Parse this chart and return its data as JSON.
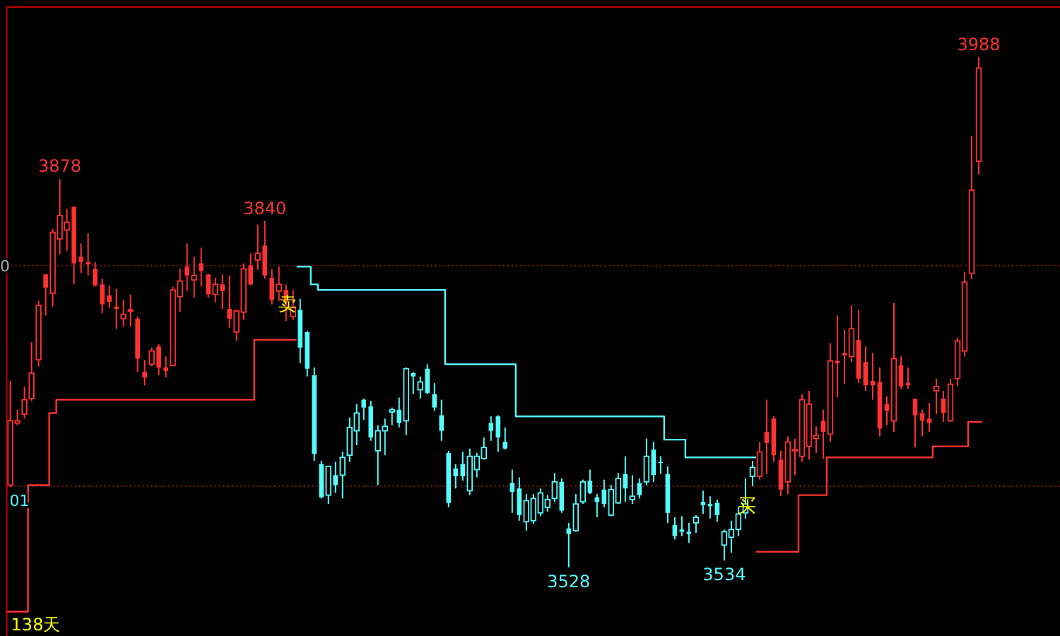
{
  "chart_data": {
    "type": "candlestick",
    "ylim": [
      3466,
      4033
    ],
    "categories": [
      null,
      null,
      null,
      null,
      null,
      null,
      null,
      null,
      null,
      null,
      null,
      null,
      null,
      null,
      null,
      null,
      null,
      null,
      null,
      null,
      null,
      null,
      null,
      null,
      null,
      null,
      null,
      null,
      null,
      null,
      null,
      null,
      null,
      null,
      null,
      null,
      null,
      null,
      null,
      null,
      null,
      null,
      null,
      null,
      null,
      null,
      null,
      null,
      null,
      null,
      null,
      null,
      null,
      null,
      null,
      null,
      null,
      null,
      null,
      null,
      null,
      null,
      null,
      null,
      null,
      null,
      null,
      null,
      null,
      null,
      null,
      null,
      null,
      null,
      null,
      null,
      null,
      null,
      null,
      null,
      null,
      null,
      null,
      null,
      null,
      null,
      null,
      null,
      null,
      null,
      null,
      null,
      null,
      null,
      null,
      null,
      null,
      null,
      null,
      null,
      null,
      null,
      null,
      null,
      null,
      null,
      null,
      null,
      null,
      null,
      null,
      null,
      null,
      null,
      null,
      null,
      null,
      null,
      null,
      null,
      null,
      null,
      null,
      null,
      null,
      null,
      null,
      null,
      null,
      null,
      null,
      null,
      null,
      null,
      null,
      null,
      null,
      null
    ],
    "ohlc": [
      [
        3602,
        3696,
        3600,
        3660
      ],
      [
        3658,
        3670,
        3656,
        3660
      ],
      [
        3666,
        3691,
        3662,
        3679
      ],
      [
        3680,
        3731,
        3678,
        3703
      ],
      [
        3715,
        3768,
        3709,
        3764
      ],
      [
        3792,
        3792,
        3755,
        3780
      ],
      [
        3775,
        3833,
        3763,
        3830
      ],
      [
        3824,
        3878,
        3810,
        3845
      ],
      [
        3832,
        3851,
        3813,
        3839
      ],
      [
        3853,
        3853,
        3783,
        3802
      ],
      [
        3808,
        3820,
        3793,
        3803
      ],
      [
        3803,
        3829,
        3791,
        3801
      ],
      [
        3797,
        3803,
        3781,
        3782
      ],
      [
        3783,
        3788,
        3757,
        3765
      ],
      [
        3773,
        3782,
        3762,
        3767
      ],
      [
        3763,
        3779,
        3743,
        3761
      ],
      [
        3752,
        3769,
        3745,
        3756
      ],
      [
        3759,
        3774,
        3745,
        3760
      ],
      [
        3752,
        3754,
        3704,
        3716
      ],
      [
        3704,
        3715,
        3692,
        3699
      ],
      [
        3711,
        3726,
        3709,
        3723
      ],
      [
        3727,
        3729,
        3701,
        3708
      ],
      [
        3708,
        3718,
        3699,
        3705
      ],
      [
        3710,
        3781,
        3709,
        3778
      ],
      [
        3772,
        3797,
        3758,
        3786
      ],
      [
        3799,
        3820,
        3777,
        3791
      ],
      [
        3787,
        3808,
        3771,
        3791
      ],
      [
        3802,
        3816,
        3781,
        3795
      ],
      [
        3792,
        3792,
        3771,
        3774
      ],
      [
        3774,
        3789,
        3767,
        3783
      ],
      [
        3783,
        3792,
        3761,
        3777
      ],
      [
        3761,
        3791,
        3744,
        3752
      ],
      [
        3740,
        3760,
        3732,
        3759
      ],
      [
        3758,
        3802,
        3751,
        3797
      ],
      [
        3800,
        3811,
        3782,
        3783
      ],
      [
        3805,
        3837,
        3796,
        3811
      ],
      [
        3818,
        3840,
        3788,
        3791
      ],
      [
        3789,
        3797,
        3765,
        3769
      ],
      [
        3777,
        3799,
        3768,
        3783
      ],
      [
        3778,
        3783,
        3750,
        3767
      ],
      [
        3754,
        3778,
        3751,
        3762
      ],
      [
        3760,
        3770,
        3712,
        3726
      ],
      [
        3740,
        3741,
        3700,
        3707
      ],
      [
        3701,
        3708,
        3624,
        3630
      ],
      [
        3621,
        3624,
        3590,
        3591
      ],
      [
        3593,
        3619,
        3585,
        3619
      ],
      [
        3611,
        3623,
        3595,
        3602
      ],
      [
        3611,
        3632,
        3590,
        3627
      ],
      [
        3629,
        3663,
        3623,
        3654
      ],
      [
        3651,
        3675,
        3638,
        3667
      ],
      [
        3679,
        3680,
        3661,
        3672
      ],
      [
        3673,
        3678,
        3642,
        3645
      ],
      [
        3633,
        3656,
        3602,
        3651
      ],
      [
        3651,
        3662,
        3629,
        3655
      ],
      [
        3668,
        3672,
        3656,
        3670
      ],
      [
        3670,
        3681,
        3654,
        3658
      ],
      [
        3660,
        3708,
        3647,
        3707
      ],
      [
        3703,
        3704,
        3684,
        3700
      ],
      [
        3688,
        3700,
        3680,
        3695
      ],
      [
        3707,
        3711,
        3684,
        3685
      ],
      [
        3684,
        3694,
        3669,
        3672
      ],
      [
        3665,
        3679,
        3642,
        3651
      ],
      [
        3631,
        3633,
        3582,
        3586
      ],
      [
        3617,
        3621,
        3599,
        3610
      ],
      [
        3621,
        3632,
        3606,
        3610
      ],
      [
        3597,
        3635,
        3593,
        3628
      ],
      [
        3616,
        3631,
        3609,
        3628
      ],
      [
        3626,
        3645,
        3625,
        3636
      ],
      [
        3658,
        3664,
        3642,
        3651
      ],
      [
        3664,
        3665,
        3632,
        3645
      ],
      [
        3641,
        3654,
        3634,
        3635
      ],
      [
        3604,
        3616,
        3577,
        3596
      ],
      [
        3599,
        3609,
        3570,
        3575
      ],
      [
        3569,
        3594,
        3561,
        3588
      ],
      [
        3570,
        3594,
        3567,
        3590
      ],
      [
        3577,
        3599,
        3574,
        3595
      ],
      [
        3582,
        3593,
        3578,
        3589
      ],
      [
        3590,
        3613,
        3587,
        3605
      ],
      [
        3605,
        3608,
        3577,
        3579
      ],
      [
        3563,
        3568,
        3528,
        3558
      ],
      [
        3561,
        3594,
        3560,
        3585
      ],
      [
        3587,
        3607,
        3585,
        3605
      ],
      [
        3606,
        3616,
        3594,
        3595
      ],
      [
        3591,
        3594,
        3573,
        3587
      ],
      [
        3598,
        3607,
        3582,
        3585
      ],
      [
        3575,
        3602,
        3574,
        3598
      ],
      [
        3586,
        3613,
        3585,
        3608
      ],
      [
        3612,
        3628,
        3587,
        3599
      ],
      [
        3589,
        3611,
        3585,
        3592
      ],
      [
        3604,
        3608,
        3590,
        3593
      ],
      [
        3605,
        3644,
        3602,
        3628
      ],
      [
        3634,
        3641,
        3605,
        3611
      ],
      [
        3623,
        3628,
        3612,
        3622
      ],
      [
        3612,
        3619,
        3568,
        3577
      ],
      [
        3566,
        3573,
        3553,
        3556
      ],
      [
        3562,
        3574,
        3556,
        3560
      ],
      [
        3560,
        3568,
        3550,
        3558
      ],
      [
        3568,
        3575,
        3559,
        3573
      ],
      [
        3587,
        3597,
        3576,
        3584
      ],
      [
        3585,
        3592,
        3572,
        3583
      ],
      [
        3586,
        3589,
        3569,
        3575
      ],
      [
        3548,
        3562,
        3534,
        3560
      ],
      [
        3555,
        3570,
        3541,
        3562
      ],
      [
        3562,
        3582,
        3556,
        3576
      ],
      [
        3577,
        3608,
        3572,
        3585
      ],
      [
        3610,
        3624,
        3601,
        3618
      ],
      [
        3610,
        3641,
        3607,
        3632
      ],
      [
        3650,
        3679,
        3612,
        3640
      ],
      [
        3662,
        3664,
        3623,
        3629
      ],
      [
        3625,
        3633,
        3592,
        3598
      ],
      [
        3605,
        3646,
        3594,
        3641
      ],
      [
        3633,
        3644,
        3611,
        3634
      ],
      [
        3628,
        3684,
        3623,
        3679
      ],
      [
        3637,
        3687,
        3625,
        3675
      ],
      [
        3644,
        3655,
        3631,
        3647
      ],
      [
        3660,
        3670,
        3626,
        3650
      ],
      [
        3648,
        3730,
        3641,
        3714
      ],
      [
        3714,
        3755,
        3681,
        3712
      ],
      [
        3721,
        3742,
        3693,
        3719
      ],
      [
        3718,
        3764,
        3713,
        3743
      ],
      [
        3733,
        3760,
        3694,
        3698
      ],
      [
        3713,
        3727,
        3687,
        3692
      ],
      [
        3696,
        3721,
        3679,
        3692
      ],
      [
        3695,
        3708,
        3646,
        3653
      ],
      [
        3675,
        3682,
        3656,
        3669
      ],
      [
        3660,
        3766,
        3650,
        3716
      ],
      [
        3710,
        3718,
        3689,
        3691
      ],
      [
        3694,
        3708,
        3689,
        3692
      ],
      [
        3680,
        3680,
        3636,
        3665
      ],
      [
        3667,
        3670,
        3646,
        3660
      ],
      [
        3662,
        3676,
        3650,
        3658
      ],
      [
        3687,
        3698,
        3666,
        3691
      ],
      [
        3680,
        3687,
        3659,
        3667
      ],
      [
        3660,
        3698,
        3659,
        3693
      ],
      [
        3698,
        3735,
        3691,
        3732
      ],
      [
        3723,
        3794,
        3718,
        3785
      ],
      [
        3793,
        3917,
        3788,
        3868
      ],
      [
        3894,
        3988,
        3882,
        3978
      ]
    ],
    "colors": [
      "#ff3232",
      "#ff3232",
      "#ff3232",
      "#ff3232",
      "#ff3232",
      "#ff3232",
      "#ff3232",
      "#ff3232",
      "#ff3232",
      "#ff3232",
      "#ff3232",
      "#ff3232",
      "#ff3232",
      "#ff3232",
      "#ff3232",
      "#ff3232",
      "#ff3232",
      "#ff3232",
      "#ff3232",
      "#ff3232",
      "#ff3232",
      "#ff3232",
      "#ff3232",
      "#ff3232",
      "#ff3232",
      "#ff3232",
      "#ff3232",
      "#ff3232",
      "#ff3232",
      "#ff3232",
      "#ff3232",
      "#ff3232",
      "#ff3232",
      "#ff3232",
      "#ff3232",
      "#ff3232",
      "#ff3232",
      "#ff3232",
      "#ff3232",
      "#ff3232",
      "#ff3232",
      "#54fcfc",
      "#54fcfc",
      "#54fcfc",
      "#54fcfc",
      "#54fcfc",
      "#54fcfc",
      "#54fcfc",
      "#54fcfc",
      "#54fcfc",
      "#54fcfc",
      "#54fcfc",
      "#54fcfc",
      "#54fcfc",
      "#54fcfc",
      "#54fcfc",
      "#54fcfc",
      "#54fcfc",
      "#54fcfc",
      "#54fcfc",
      "#54fcfc",
      "#54fcfc",
      "#54fcfc",
      "#54fcfc",
      "#54fcfc",
      "#54fcfc",
      "#54fcfc",
      "#54fcfc",
      "#54fcfc",
      "#54fcfc",
      "#54fcfc",
      "#54fcfc",
      "#54fcfc",
      "#54fcfc",
      "#54fcfc",
      "#54fcfc",
      "#54fcfc",
      "#54fcfc",
      "#54fcfc",
      "#54fcfc",
      "#54fcfc",
      "#54fcfc",
      "#54fcfc",
      "#54fcfc",
      "#54fcfc",
      "#54fcfc",
      "#54fcfc",
      "#54fcfc",
      "#54fcfc",
      "#54fcfc",
      "#54fcfc",
      "#54fcfc",
      "#54fcfc",
      "#54fcfc",
      "#54fcfc",
      "#54fcfc",
      "#54fcfc",
      "#54fcfc",
      "#54fcfc",
      "#54fcfc",
      "#54fcfc",
      "#54fcfc",
      "#54fcfc",
      "#54fcfc",
      "#54fcfc",
      "#54fcfc",
      "#ff3232",
      "#ff3232",
      "#ff3232",
      "#ff3232",
      "#ff3232",
      "#ff3232",
      "#ff3232",
      "#ff3232",
      "#ff3232",
      "#ff3232",
      "#ff3232",
      "#ff3232",
      "#ff3232",
      "#ff3232",
      "#ff3232",
      "#ff3232",
      "#ff3232",
      "#ff3232",
      "#ff3232",
      "#ff3232",
      "#ff3232",
      "#ff3232",
      "#ff3232",
      "#ff3232",
      "#ff3232",
      "#ff3232",
      "#ff3232",
      "#ff3232",
      "#ff3232",
      "#ff3232",
      "#ff3232",
      "#ff3232"
    ],
    "series": [
      {
        "type": "step",
        "color": "#ff3232",
        "values": [
          3488,
          3488,
          3488,
          3602,
          3602,
          3602,
          3667,
          3679,
          3679,
          3679,
          3679,
          3679,
          3679,
          3679,
          3679,
          3679,
          3679,
          3679,
          3679,
          3679,
          3679,
          3679,
          3679,
          3679,
          3679,
          3679,
          3679,
          3679,
          3679,
          3679,
          3679,
          3679,
          3679,
          3679,
          3679,
          3733,
          3733,
          3733,
          3733,
          3733,
          3733,
          null,
          null,
          null,
          null,
          null,
          null,
          null,
          null,
          null,
          null,
          null,
          null,
          null,
          null,
          null,
          null,
          null,
          null,
          null,
          null,
          null,
          null,
          null,
          null,
          null,
          null,
          null,
          null,
          null,
          null,
          null,
          null,
          null,
          null,
          null,
          null,
          null,
          null,
          null,
          null,
          null,
          null,
          null,
          null,
          null,
          null,
          null,
          null,
          null,
          null,
          null,
          null,
          null,
          null,
          null,
          null,
          null,
          null,
          null,
          null,
          null,
          null,
          null,
          null,
          null,
          3542,
          3542,
          3542,
          3542,
          3542,
          3542,
          3593,
          3593,
          3593,
          3593,
          3627,
          3627,
          3627,
          3627,
          3627,
          3627,
          3627,
          3627,
          3627,
          3627,
          3627,
          3627,
          3627,
          3627,
          3627,
          3637,
          3637,
          3637,
          3637,
          3637,
          3659,
          3659
        ]
      },
      {
        "type": "step",
        "color": "#54fcfc",
        "values": [
          null,
          null,
          null,
          null,
          null,
          null,
          null,
          null,
          null,
          null,
          null,
          null,
          null,
          null,
          null,
          null,
          null,
          null,
          null,
          null,
          null,
          null,
          null,
          null,
          null,
          null,
          null,
          null,
          null,
          null,
          null,
          null,
          null,
          null,
          null,
          null,
          null,
          null,
          null,
          null,
          null,
          3799,
          3799,
          3783,
          3778,
          3778,
          3778,
          3778,
          3778,
          3778,
          3778,
          3778,
          3778,
          3778,
          3778,
          3778,
          3778,
          3778,
          3778,
          3778,
          3778,
          3778,
          3711,
          3711,
          3711,
          3711,
          3711,
          3711,
          3711,
          3711,
          3711,
          3711,
          3664,
          3664,
          3664,
          3664,
          3664,
          3664,
          3664,
          3664,
          3664,
          3664,
          3664,
          3664,
          3664,
          3664,
          3664,
          3664,
          3664,
          3664,
          3664,
          3664,
          3664,
          3643,
          3643,
          3643,
          3627,
          3627,
          3627,
          3627,
          3627,
          3627,
          3627,
          3627,
          3627,
          3627,
          null,
          null,
          null,
          null,
          null,
          null,
          null,
          null,
          null,
          null,
          null,
          null,
          null,
          null,
          null,
          null,
          null,
          null,
          null,
          null,
          null,
          null,
          null,
          null,
          null,
          null,
          null,
          null,
          null,
          null,
          null,
          null
        ]
      }
    ],
    "ref_lines": [
      {
        "axis": "y",
        "value": 3800,
        "color": "#8b1a1a",
        "line_style": "dotted"
      },
      {
        "axis": "y",
        "value": 3601,
        "color": "#8b1a1a",
        "line_style": "dotted"
      }
    ],
    "annotations": [
      {
        "text": "0",
        "y": 3800
      },
      {
        "text": "01",
        "y": 3601
      },
      {
        "text": "3878",
        "y": 3878
      },
      {
        "text": "3840",
        "y": 3840
      },
      {
        "text": "3528",
        "y": 3528
      },
      {
        "text": "3534",
        "y": 3534
      },
      {
        "text": "3988",
        "y": 3988
      },
      "卖",
      "买",
      "138天"
    ]
  }
}
